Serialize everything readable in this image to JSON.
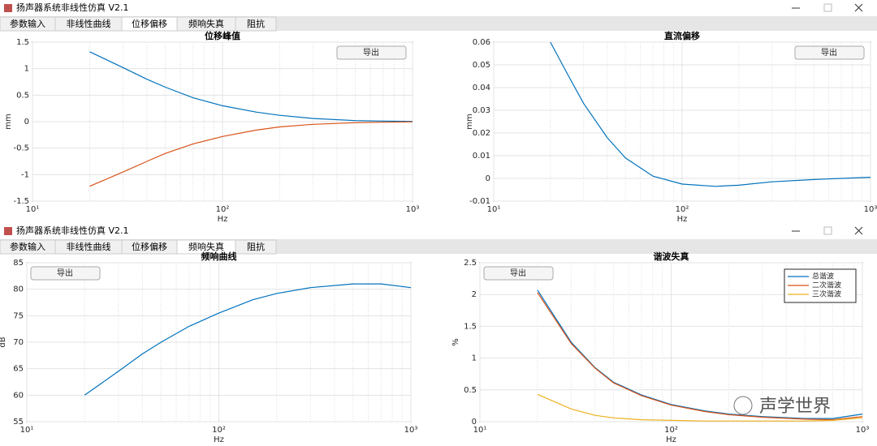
{
  "watermark": "声学世界",
  "windows": [
    {
      "title": "扬声器系统非线性仿真 V2.1",
      "tabs": [
        "参数输入",
        "非线性曲线",
        "位移偏移",
        "频响失真",
        "阻抗"
      ],
      "active_tab": 2,
      "charts": [
        {
          "type": "line",
          "title": "位移峰值",
          "xlabel": "Hz",
          "ylabel": "mm",
          "button": "导出",
          "log_x": true,
          "grid": true,
          "xlim": [
            10,
            1000
          ],
          "xticks": [
            {
              "value": 10,
              "label": "10¹"
            },
            {
              "value": 100,
              "label": "10²"
            },
            {
              "value": 1000,
              "label": "10³"
            }
          ],
          "xminorticks": [
            20,
            30,
            40,
            50,
            60,
            70,
            80,
            90,
            200,
            300,
            400,
            500,
            600,
            700,
            800,
            900
          ],
          "ylim": [
            -1.5,
            1.5
          ],
          "yticks": [
            -1.5,
            -1,
            -0.5,
            0,
            0.5,
            1,
            1.5
          ],
          "x": [
            20,
            30,
            40,
            50,
            70,
            100,
            150,
            200,
            300,
            500,
            700,
            1000
          ],
          "series": [
            {
              "color": "#0072bd",
              "values": [
                1.32,
                1.02,
                0.8,
                0.65,
                0.45,
                0.3,
                0.18,
                0.12,
                0.06,
                0.02,
                0.01,
                0.005
              ]
            },
            {
              "color": "#d95319",
              "values": [
                -1.22,
                -0.95,
                -0.75,
                -0.6,
                -0.42,
                -0.28,
                -0.16,
                -0.1,
                -0.05,
                -0.02,
                -0.01,
                -0.005
              ]
            }
          ]
        },
        {
          "type": "line",
          "title": "直流偏移",
          "xlabel": "Hz",
          "ylabel": "mm",
          "button": "导出",
          "log_x": true,
          "grid": true,
          "xlim": [
            10,
            1000
          ],
          "xticks": [
            {
              "value": 10,
              "label": "10¹"
            },
            {
              "value": 100,
              "label": "10²"
            },
            {
              "value": 1000,
              "label": "10³"
            }
          ],
          "xminorticks": [
            20,
            30,
            40,
            50,
            60,
            70,
            80,
            90,
            200,
            300,
            400,
            500,
            600,
            700,
            800,
            900
          ],
          "ylim": [
            -0.01,
            0.06
          ],
          "yticks": [
            -0.01,
            0,
            0.01,
            0.02,
            0.03,
            0.04,
            0.05,
            0.06
          ],
          "x": [
            20,
            25,
            30,
            40,
            50,
            70,
            100,
            150,
            200,
            300,
            500,
            700,
            1000
          ],
          "series": [
            {
              "color": "#0072bd",
              "values": [
                0.06,
                0.045,
                0.033,
                0.018,
                0.009,
                0.001,
                -0.0025,
                -0.0035,
                -0.003,
                -0.0015,
                -0.0005,
                0,
                0.0005
              ]
            }
          ]
        }
      ]
    },
    {
      "title": "扬声器系统非线性仿真 V2.1",
      "tabs": [
        "参数输入",
        "非线性曲线",
        "位移偏移",
        "频响失真",
        "阻抗"
      ],
      "active_tab": 3,
      "charts": [
        {
          "type": "line",
          "title": "频响曲线",
          "xlabel": "Hz",
          "ylabel": "dB",
          "button": "导出",
          "log_x": true,
          "grid": true,
          "xlim": [
            10,
            1000
          ],
          "xticks": [
            {
              "value": 10,
              "label": "10¹"
            },
            {
              "value": 100,
              "label": "10²"
            },
            {
              "value": 1000,
              "label": "10³"
            }
          ],
          "xminorticks": [
            20,
            30,
            40,
            50,
            60,
            70,
            80,
            90,
            200,
            300,
            400,
            500,
            600,
            700,
            800,
            900
          ],
          "ylim": [
            55,
            85
          ],
          "yticks": [
            55,
            60,
            65,
            70,
            75,
            80,
            85
          ],
          "x": [
            20,
            30,
            40,
            50,
            70,
            100,
            150,
            200,
            300,
            500,
            700,
            1000
          ],
          "series": [
            {
              "color": "#0072bd",
              "values": [
                60,
                64.5,
                67.8,
                70,
                73,
                75.5,
                78,
                79.2,
                80.3,
                81,
                81,
                80.3
              ]
            }
          ]
        },
        {
          "type": "line",
          "title": "谐波失真",
          "xlabel": "Hz",
          "ylabel": "%",
          "button": "导出",
          "log_x": true,
          "grid": true,
          "legend": "northeast",
          "xlim": [
            10,
            1000
          ],
          "xticks": [
            {
              "value": 10,
              "label": "10¹"
            },
            {
              "value": 100,
              "label": "10²"
            },
            {
              "value": 1000,
              "label": "10³"
            }
          ],
          "xminorticks": [
            20,
            30,
            40,
            50,
            60,
            70,
            80,
            90,
            200,
            300,
            400,
            500,
            600,
            700,
            800,
            900
          ],
          "ylim": [
            0,
            2.5
          ],
          "yticks": [
            0,
            0.5,
            1,
            1.5,
            2,
            2.5
          ],
          "x": [
            20,
            30,
            40,
            50,
            70,
            100,
            150,
            200,
            300,
            500,
            700,
            1000
          ],
          "series": [
            {
              "name": "总谐波",
              "color": "#0072bd",
              "values": [
                2.07,
                1.25,
                0.85,
                0.62,
                0.42,
                0.27,
                0.17,
                0.12,
                0.08,
                0.05,
                0.05,
                0.12
              ]
            },
            {
              "name": "二次谐波",
              "color": "#d95319",
              "values": [
                2.03,
                1.23,
                0.84,
                0.61,
                0.41,
                0.26,
                0.16,
                0.11,
                0.07,
                0.04,
                0.03,
                0.08
              ]
            },
            {
              "name": "三次谐波",
              "color": "#edb120",
              "values": [
                0.43,
                0.2,
                0.1,
                0.06,
                0.03,
                0.02,
                0.01,
                0.01,
                0.01,
                0.01,
                0.02,
                0.06
              ]
            }
          ]
        }
      ]
    }
  ]
}
